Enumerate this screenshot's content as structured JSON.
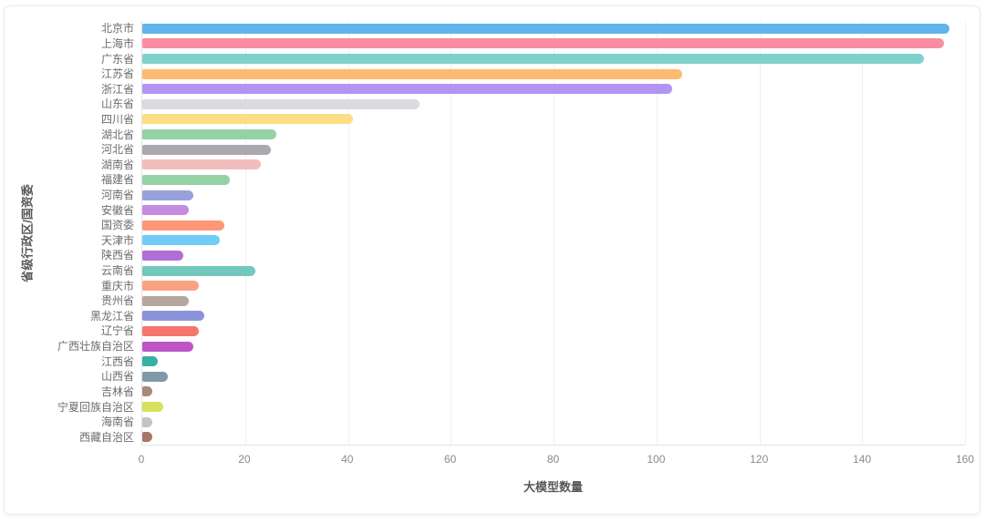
{
  "chart_data": {
    "type": "bar",
    "orientation": "horizontal",
    "title": "",
    "xlabel": "大模型数量",
    "ylabel": "省级行政区/国资委",
    "xlim": [
      0,
      160
    ],
    "xticks": [
      0,
      20,
      40,
      60,
      80,
      100,
      120,
      140,
      160
    ],
    "grid": true,
    "legend": "none",
    "categories": [
      "北京市",
      "上海市",
      "广东省",
      "江苏省",
      "浙江省",
      "山东省",
      "四川省",
      "湖北省",
      "河北省",
      "湖南省",
      "福建省",
      "河南省",
      "安徽省",
      "国资委",
      "天津市",
      "陕西省",
      "云南省",
      "重庆市",
      "贵州省",
      "黑龙江省",
      "辽宁省",
      "广西壮族自治区",
      "江西省",
      "山西省",
      "吉林省",
      "宁夏回族自治区",
      "海南省",
      "西藏自治区"
    ],
    "values": [
      157,
      156,
      152,
      105,
      103,
      54,
      41,
      26,
      25,
      23,
      17,
      10,
      9,
      16,
      15,
      8,
      22,
      11,
      9,
      12,
      11,
      10,
      3,
      5,
      2,
      4,
      2,
      2
    ],
    "bar_colors": [
      "#61b3ee",
      "#fa8da3",
      "#7fd1cc",
      "#fdba74",
      "#b295f2",
      "#d9dbe0",
      "#fedd87",
      "#94d1a4",
      "#aaaaae",
      "#f2bebc",
      "#94d1a4",
      "#98a0dc",
      "#c38ce2",
      "#fc9878",
      "#70cdf5",
      "#b16fd6",
      "#72c8bd",
      "#fba285",
      "#b4a89e",
      "#8b93d9",
      "#f5756e",
      "#bd55c8",
      "#37b1a1",
      "#8099a8",
      "#a88a79",
      "#d7e15c",
      "#c2c5c4",
      "#a87566"
    ],
    "axis_color": "#e2e2e6",
    "gridline_color": "#f0f0f3",
    "label_color": "#6c6c71",
    "tick_color": "#8a8a90",
    "title_color": "#58585c"
  }
}
